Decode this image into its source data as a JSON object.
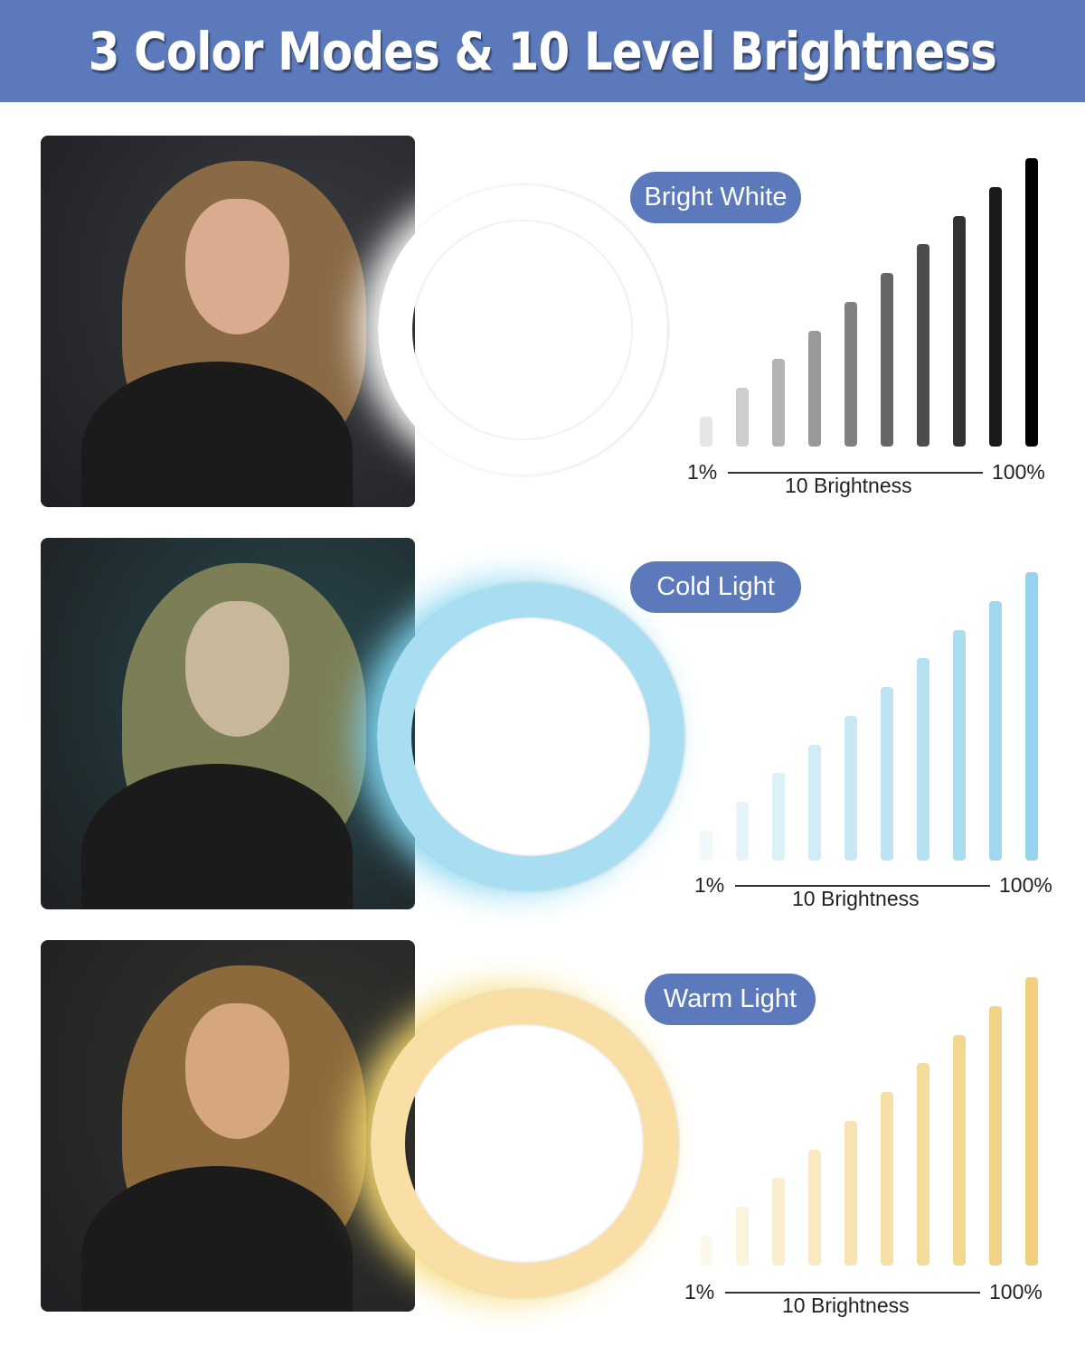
{
  "header": {
    "title": "3 Color Modes & 10 Level Brightness"
  },
  "accent_color": "#5b79bb",
  "modes": [
    {
      "label": "Bright White",
      "ring_color": "#ffffff",
      "glow_color": "#ffffff",
      "photo_bg": "#3a3c42",
      "bar_colors": [
        "#e6e6e6",
        "#cdcdcd",
        "#b3b3b3",
        "#999999",
        "#808080",
        "#666666",
        "#4d4d4d",
        "#333333",
        "#1a1a1a",
        "#000000"
      ],
      "axis": {
        "min_label": "1%",
        "max_label": "100%",
        "caption": "10 Brightness"
      }
    },
    {
      "label": "Cold Light",
      "ring_color": "#a9def2",
      "glow_color": "#7fd3ef",
      "photo_bg": "#27484c",
      "bar_colors": [
        "#f0f8fc",
        "#e6f4fa",
        "#dcf0f8",
        "#d2ecf7",
        "#c8e8f5",
        "#bee4f3",
        "#b4e0f2",
        "#aadcf0",
        "#a0d8ef",
        "#96d4ed"
      ],
      "axis": {
        "min_label": "1%",
        "max_label": "100%",
        "caption": "10 Brightness"
      }
    },
    {
      "label": "Warm Light",
      "ring_color": "#f9dfa6",
      "glow_color": "#f5d86e",
      "photo_bg": "#35362f",
      "bar_colors": [
        "#fdf8ec",
        "#fcf3dd",
        "#faeecf",
        "#f9e9c0",
        "#f7e4b2",
        "#f6e0a6",
        "#f4dc9b",
        "#f3d891",
        "#f1d487",
        "#f0d07e"
      ],
      "axis": {
        "min_label": "1%",
        "max_label": "100%",
        "caption": "10 Brightness"
      }
    }
  ],
  "brightness_levels": 10
}
